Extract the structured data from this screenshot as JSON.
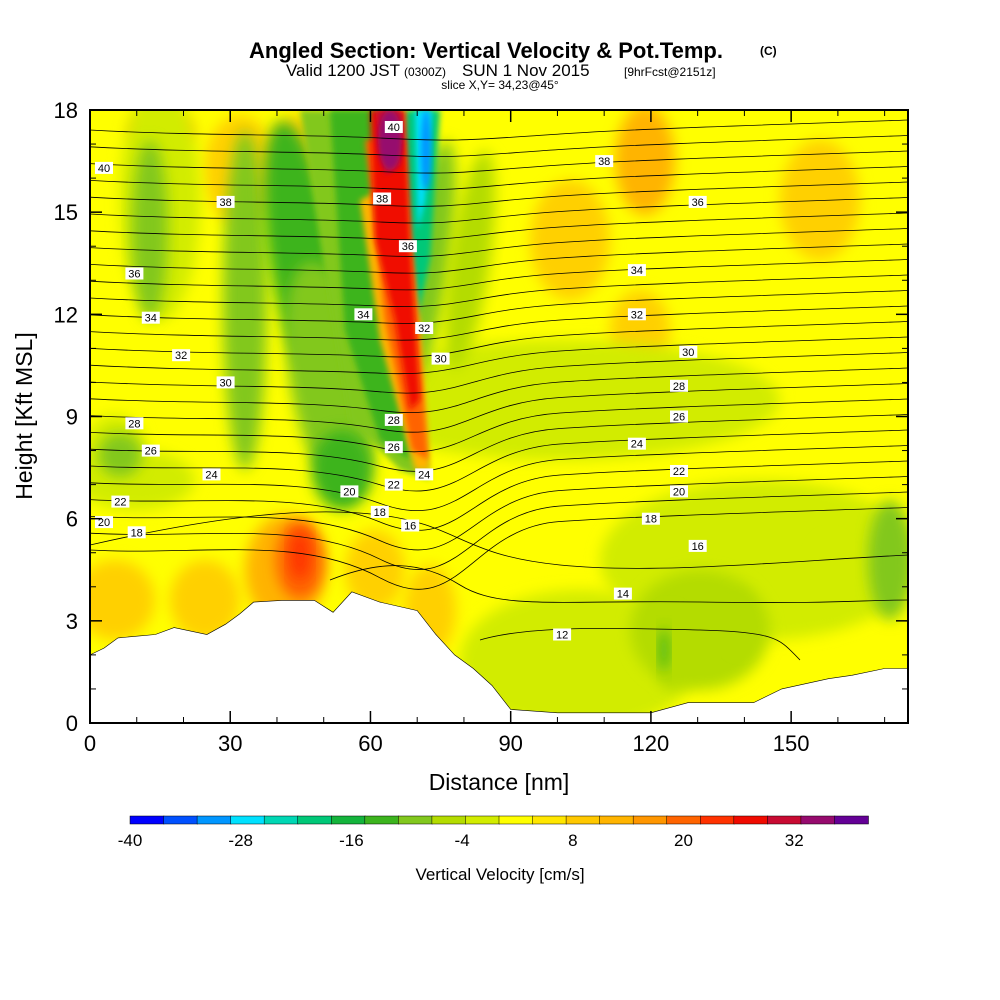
{
  "title": {
    "main": "Angled Section: Vertical Velocity & Pot.Temp.",
    "mark": "(C)",
    "valid_prefix": "Valid 1200 JST",
    "utc": "(0300Z)",
    "date": "SUN 1 Nov 2015",
    "fcst": "[9hrFcst@2151z]",
    "slice": "slice X,Y= 34,23@45°"
  },
  "chart_data": {
    "type": "heatmap",
    "xlabel": "Distance [nm]",
    "ylabel": "Height [Kft MSL]",
    "xlim": [
      0,
      175
    ],
    "ylim": [
      0,
      18
    ],
    "x_ticks": [
      "0",
      "30",
      "60",
      "90",
      "120",
      "150"
    ],
    "x_tick_values": [
      0,
      30,
      60,
      90,
      120,
      150
    ],
    "y_ticks": [
      "0",
      "3",
      "6",
      "9",
      "12",
      "15",
      "18"
    ],
    "y_tick_values": [
      0,
      3,
      6,
      9,
      12,
      15,
      18
    ],
    "colorbar": {
      "title": "Vertical Velocity [cm/s]",
      "labels": [
        "-40",
        "-28",
        "-16",
        "-4",
        "8",
        "20",
        "32"
      ],
      "label_values": [
        -40,
        -28,
        -16,
        -4,
        8,
        20,
        32
      ],
      "range": [
        -40,
        40
      ],
      "colors": [
        "#0000ff",
        "#0050ff",
        "#0096ff",
        "#00e1ff",
        "#00d7b4",
        "#00c878",
        "#14b43c",
        "#3cb41e",
        "#82c81e",
        "#b4dc00",
        "#d2ec00",
        "#ffff00",
        "#ffe600",
        "#ffc800",
        "#ffb400",
        "#ff9600",
        "#ff6400",
        "#ff3200",
        "#f00a00",
        "#c80a32",
        "#960a6e",
        "#640096"
      ]
    },
    "theta_contour_labels": [
      {
        "v": "40",
        "x": 3,
        "y": 16.3
      },
      {
        "v": "38",
        "x": 29,
        "y": 15.3
      },
      {
        "v": "36",
        "x": 9.5,
        "y": 13.2
      },
      {
        "v": "34",
        "x": 13,
        "y": 11.9
      },
      {
        "v": "32",
        "x": 19.5,
        "y": 10.8
      },
      {
        "v": "30",
        "x": 29,
        "y": 10.0
      },
      {
        "v": "28",
        "x": 9.5,
        "y": 8.8
      },
      {
        "v": "26",
        "x": 13,
        "y": 8.0
      },
      {
        "v": "24",
        "x": 26,
        "y": 7.3
      },
      {
        "v": "22",
        "x": 6.5,
        "y": 6.5
      },
      {
        "v": "20",
        "x": 3,
        "y": 5.9
      },
      {
        "v": "18",
        "x": 10,
        "y": 5.6
      },
      {
        "v": "40",
        "x": 65,
        "y": 17.5
      },
      {
        "v": "38",
        "x": 62.5,
        "y": 15.4
      },
      {
        "v": "36",
        "x": 68,
        "y": 14.0
      },
      {
        "v": "34",
        "x": 58.5,
        "y": 12.0
      },
      {
        "v": "32",
        "x": 71.5,
        "y": 11.6
      },
      {
        "v": "30",
        "x": 75,
        "y": 10.7
      },
      {
        "v": "28",
        "x": 65,
        "y": 8.9
      },
      {
        "v": "26",
        "x": 65,
        "y": 8.1
      },
      {
        "v": "24",
        "x": 71.5,
        "y": 7.3
      },
      {
        "v": "22",
        "x": 65,
        "y": 7.0
      },
      {
        "v": "20",
        "x": 55.5,
        "y": 6.8
      },
      {
        "v": "18",
        "x": 62,
        "y": 6.2
      },
      {
        "v": "16",
        "x": 68.5,
        "y": 5.8
      },
      {
        "v": "38",
        "x": 110,
        "y": 16.5
      },
      {
        "v": "36",
        "x": 130,
        "y": 15.3
      },
      {
        "v": "34",
        "x": 117,
        "y": 13.3
      },
      {
        "v": "32",
        "x": 117,
        "y": 12.0
      },
      {
        "v": "30",
        "x": 128,
        "y": 10.9
      },
      {
        "v": "28",
        "x": 126,
        "y": 9.9
      },
      {
        "v": "26",
        "x": 126,
        "y": 9.0
      },
      {
        "v": "24",
        "x": 117,
        "y": 8.2
      },
      {
        "v": "22",
        "x": 126,
        "y": 7.4
      },
      {
        "v": "20",
        "x": 126,
        "y": 6.8
      },
      {
        "v": "18",
        "x": 120,
        "y": 6.0
      },
      {
        "v": "16",
        "x": 130,
        "y": 5.2
      },
      {
        "v": "14",
        "x": 114,
        "y": 3.8
      },
      {
        "v": "12",
        "x": 101,
        "y": 2.6
      }
    ],
    "terrain": [
      [
        0,
        2.0
      ],
      [
        3,
        2.2
      ],
      [
        6,
        2.5
      ],
      [
        14,
        2.6
      ],
      [
        18,
        2.8
      ],
      [
        25,
        2.6
      ],
      [
        29,
        2.9
      ],
      [
        32,
        3.2
      ],
      [
        35,
        3.55
      ],
      [
        41,
        3.6
      ],
      [
        48,
        3.6
      ],
      [
        52,
        3.25
      ],
      [
        56,
        3.85
      ],
      [
        62,
        3.55
      ],
      [
        70,
        3.3
      ],
      [
        74,
        2.6
      ],
      [
        78,
        2.0
      ],
      [
        82,
        1.6
      ],
      [
        86,
        1.1
      ],
      [
        90,
        0.4
      ],
      [
        100,
        0.3
      ],
      [
        110,
        0.3
      ],
      [
        120,
        0.3
      ],
      [
        128,
        0.6
      ],
      [
        142,
        0.6
      ],
      [
        148,
        1.0
      ],
      [
        158,
        1.3
      ],
      [
        163,
        1.4
      ],
      [
        170,
        1.6
      ],
      [
        175,
        1.6
      ]
    ]
  }
}
